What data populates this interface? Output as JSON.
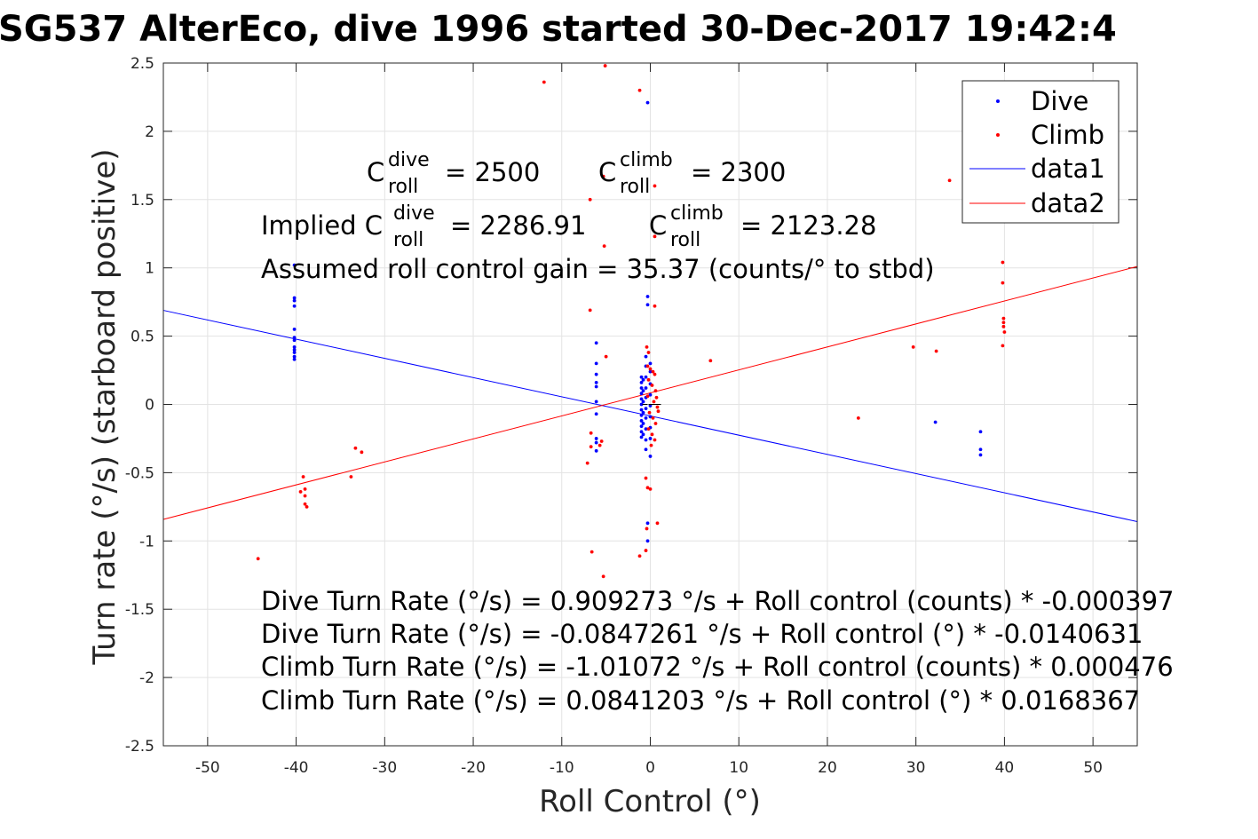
{
  "chart_data": {
    "type": "scatter",
    "title": "SG537 AlterEco, dive 1996 started 30-Dec-2017 19:42:4",
    "xlabel": "Roll Control (°)",
    "ylabel": "Turn rate (°/s) (starboard positive)",
    "xlim": [
      -55,
      55
    ],
    "ylim": [
      -2.5,
      2.5
    ],
    "xticks": [
      -50,
      -40,
      -30,
      -20,
      -10,
      0,
      10,
      20,
      30,
      40,
      50
    ],
    "xtick_labels": [
      "-50",
      "-40",
      "-30",
      "-20",
      "-10",
      "0",
      "10",
      "20",
      "30",
      "40",
      "50"
    ],
    "yticks": [
      -2.5,
      -2,
      -1.5,
      -1,
      -0.5,
      0,
      0.5,
      1,
      1.5,
      2,
      2.5
    ],
    "ytick_labels": [
      "-2.5",
      "-2",
      "-1.5",
      "-1",
      "-0.5",
      "0",
      "0.5",
      "1",
      "1.5",
      "2",
      "2.5"
    ],
    "grid": true,
    "legend_position": "top-right",
    "series": [
      {
        "name": "Dive",
        "kind": "points",
        "color": "#0000ff",
        "points": [
          [
            -40.2,
            1.02
          ],
          [
            -40.2,
            0.78
          ],
          [
            -40.2,
            0.76
          ],
          [
            -40.2,
            0.72
          ],
          [
            -40.2,
            0.55
          ],
          [
            -40.2,
            0.49
          ],
          [
            -40.2,
            0.47
          ],
          [
            -40.2,
            0.42
          ],
          [
            -40.2,
            0.4
          ],
          [
            -40.2,
            0.38
          ],
          [
            -40.2,
            0.35
          ],
          [
            -40.2,
            0.33
          ],
          [
            -6.1,
            0.45
          ],
          [
            -6.1,
            0.3
          ],
          [
            -6.1,
            0.22
          ],
          [
            -6.1,
            0.16
          ],
          [
            -6.1,
            0.13
          ],
          [
            -6.1,
            0.02
          ],
          [
            -6.1,
            -0.07
          ],
          [
            -6.1,
            -0.25
          ],
          [
            -6.1,
            -0.28
          ],
          [
            -6.1,
            -0.34
          ],
          [
            -0.3,
            2.21
          ],
          [
            -0.3,
            0.79
          ],
          [
            -0.3,
            0.73
          ],
          [
            -0.3,
            -0.87
          ],
          [
            -0.3,
            -1.0
          ],
          [
            -1.0,
            0.2
          ],
          [
            -1.0,
            0.16
          ],
          [
            -1.0,
            0.12
          ],
          [
            -1.0,
            0.08
          ],
          [
            -1.0,
            0.04
          ],
          [
            -1.0,
            0.0
          ],
          [
            -1.0,
            -0.04
          ],
          [
            -1.0,
            -0.08
          ],
          [
            -1.0,
            -0.12
          ],
          [
            -1.0,
            -0.16
          ],
          [
            -1.0,
            -0.2
          ],
          [
            -1.0,
            -0.24
          ],
          [
            -0.8,
            0.18
          ],
          [
            -0.8,
            0.1
          ],
          [
            -0.8,
            0.02
          ],
          [
            -0.8,
            -0.06
          ],
          [
            -0.8,
            -0.14
          ],
          [
            -0.8,
            -0.22
          ],
          [
            -0.5,
            0.35
          ],
          [
            -0.5,
            0.28
          ],
          [
            -0.5,
            0.2
          ],
          [
            -0.5,
            0.12
          ],
          [
            -0.5,
            0.05
          ],
          [
            -0.5,
            -0.03
          ],
          [
            -0.5,
            -0.1
          ],
          [
            -0.5,
            -0.18
          ],
          [
            -0.5,
            -0.26
          ],
          [
            -0.5,
            -0.33
          ],
          [
            0.0,
            0.3
          ],
          [
            0.0,
            0.24
          ],
          [
            0.0,
            0.15
          ],
          [
            0.0,
            0.07
          ],
          [
            0.0,
            -0.01
          ],
          [
            0.0,
            -0.09
          ],
          [
            0.0,
            -0.17
          ],
          [
            0.0,
            -0.25
          ],
          [
            0.0,
            -0.38
          ],
          [
            32.2,
            -0.13
          ],
          [
            37.3,
            -0.2
          ],
          [
            37.3,
            -0.33
          ],
          [
            37.3,
            -0.37
          ]
        ]
      },
      {
        "name": "Climb",
        "kind": "points",
        "color": "#ff0000",
        "points": [
          [
            -12.0,
            2.36
          ],
          [
            -5.1,
            2.48
          ],
          [
            -1.2,
            2.3
          ],
          [
            -6.8,
            1.5
          ],
          [
            -5.3,
            1.67
          ],
          [
            0.5,
            1.6
          ],
          [
            -5.2,
            1.16
          ],
          [
            0.5,
            1.23
          ],
          [
            -6.8,
            0.69
          ],
          [
            0.5,
            0.72
          ],
          [
            -5.0,
            0.35
          ],
          [
            -44.3,
            -1.13
          ],
          [
            -39.5,
            -0.64
          ],
          [
            -39.2,
            -0.53
          ],
          [
            -39.0,
            -0.62
          ],
          [
            -39.0,
            -0.67
          ],
          [
            -39.0,
            -0.73
          ],
          [
            -38.8,
            -0.75
          ],
          [
            -33.8,
            -0.53
          ],
          [
            -33.3,
            -0.32
          ],
          [
            -32.6,
            -0.35
          ],
          [
            -7.1,
            -0.43
          ],
          [
            -6.7,
            -0.21
          ],
          [
            -6.7,
            -0.31
          ],
          [
            -5.7,
            -0.3
          ],
          [
            -5.5,
            -0.27
          ],
          [
            -6.6,
            -1.08
          ],
          [
            -5.3,
            -1.26
          ],
          [
            -1.2,
            -1.11
          ],
          [
            -0.5,
            -1.07
          ],
          [
            -0.4,
            -0.91
          ],
          [
            0.8,
            -0.87
          ],
          [
            -0.5,
            -0.54
          ],
          [
            -0.3,
            -0.61
          ],
          [
            0.0,
            -0.62
          ],
          [
            -0.4,
            0.42
          ],
          [
            -0.2,
            0.38
          ],
          [
            -0.3,
            0.28
          ],
          [
            0.0,
            0.26
          ],
          [
            0.3,
            0.24
          ],
          [
            0.5,
            0.22
          ],
          [
            -0.2,
            0.18
          ],
          [
            0.2,
            0.14
          ],
          [
            0.6,
            0.1
          ],
          [
            -0.3,
            0.06
          ],
          [
            0.4,
            0.02
          ],
          [
            0.8,
            -0.02
          ],
          [
            -0.1,
            -0.06
          ],
          [
            0.3,
            -0.1
          ],
          [
            0.6,
            -0.14
          ],
          [
            -0.2,
            -0.18
          ],
          [
            0.2,
            -0.22
          ],
          [
            0.5,
            -0.26
          ],
          [
            0.1,
            -0.3
          ],
          [
            0.7,
            0.05
          ],
          [
            0.9,
            -0.05
          ],
          [
            6.8,
            0.32
          ],
          [
            23.5,
            -0.1
          ],
          [
            29.7,
            0.42
          ],
          [
            32.3,
            0.39
          ],
          [
            33.8,
            1.64
          ],
          [
            39.8,
            1.04
          ],
          [
            39.8,
            0.89
          ],
          [
            39.9,
            0.63
          ],
          [
            39.9,
            0.6
          ],
          [
            39.9,
            0.57
          ],
          [
            40.0,
            0.53
          ],
          [
            39.8,
            0.43
          ]
        ]
      },
      {
        "name": "data1",
        "kind": "line",
        "color": "#0000ff",
        "intercept": -0.0847261,
        "slope": -0.0140631
      },
      {
        "name": "data2",
        "kind": "line",
        "color": "#ff0000",
        "intercept": 0.0841203,
        "slope": 0.0168367
      }
    ],
    "black_mark_points": [
      [
        -0.6,
        0.0
      ],
      [
        0.1,
        0.0
      ],
      [
        0.5,
        0.0
      ],
      [
        0.9,
        0.0
      ]
    ],
    "annotations": {
      "c_dive": {
        "prefix": "C",
        "sup": "dive",
        "sub": "roll",
        "value": "= 2500"
      },
      "c_climb": {
        "prefix": "C",
        "sup": "climb",
        "sub": "roll",
        "value": "= 2300"
      },
      "implied_dive": {
        "lead": "Implied C",
        "sup": "dive",
        "sub": "roll",
        "value": "= 2286.91"
      },
      "implied_climb": {
        "prefix": "C",
        "sup": "climb",
        "sub": "roll",
        "value": "= 2123.28"
      },
      "gain": "Assumed roll control gain = 35.37 (counts/° to stbd)",
      "eq1": "Dive Turn Rate (°/s) = 0.909273 °/s + Roll control (counts) * -0.000397",
      "eq2": "Dive Turn Rate (°/s) = -0.0847261 °/s + Roll control (°) * -0.0140631",
      "eq3": "Climb Turn Rate (°/s) = -1.01072 °/s + Roll control (counts) * 0.000476",
      "eq4": "Climb Turn Rate (°/s) = 0.0841203 °/s + Roll control (°) * 0.0168367"
    }
  }
}
